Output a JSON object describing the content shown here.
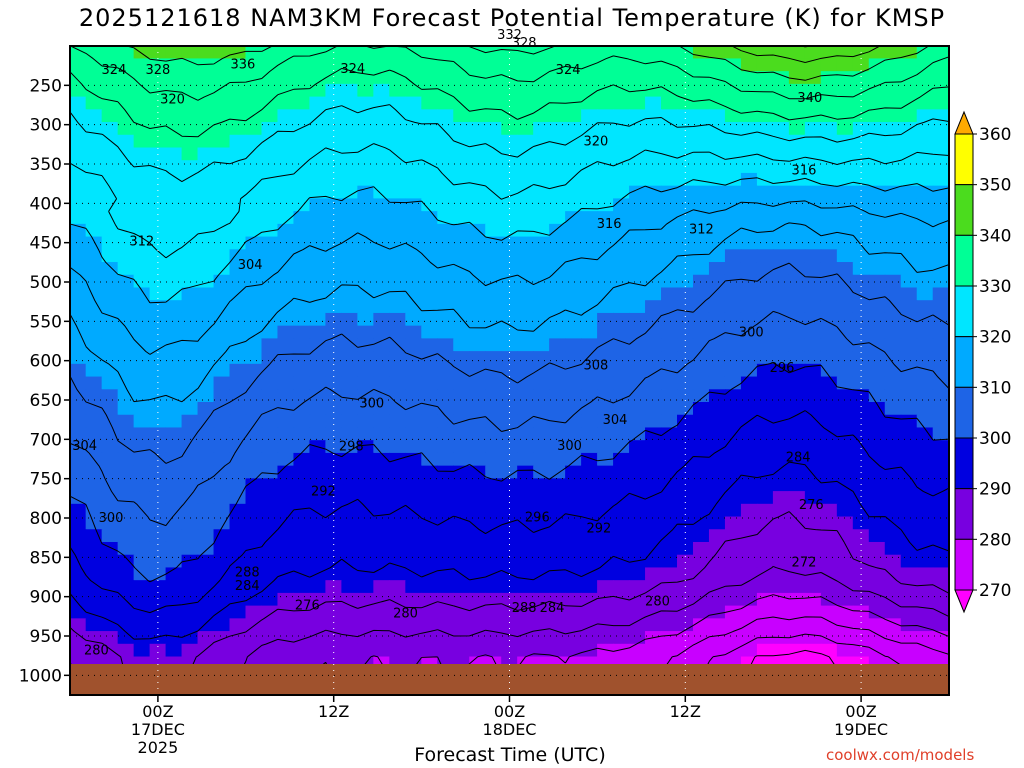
{
  "chart_data": {
    "type": "contour",
    "title": "2025121618 NAM3KM Forecast Potential Temperature (K) for KMSP",
    "xlabel": "Forecast Time (UTC)",
    "y_ticks": [
      250,
      300,
      350,
      400,
      450,
      500,
      550,
      600,
      650,
      700,
      750,
      800,
      850,
      900,
      950,
      1000
    ],
    "x_ticks": [
      {
        "hour": 6,
        "lines": [
          "00Z",
          "17DEC",
          "2025"
        ]
      },
      {
        "hour": 18,
        "lines": [
          "12Z"
        ]
      },
      {
        "hour": 30,
        "lines": [
          "00Z",
          "18DEC"
        ]
      },
      {
        "hour": 42,
        "lines": [
          "12Z"
        ]
      },
      {
        "hour": 54,
        "lines": [
          "00Z",
          "19DEC"
        ]
      }
    ],
    "x_range_hours": [
      0,
      60
    ],
    "y_range_hpa": [
      200,
      1025
    ],
    "colorbar": {
      "levels": [
        270,
        280,
        290,
        300,
        310,
        320,
        330,
        340,
        350,
        360
      ],
      "colors": [
        "#ff00ff",
        "#c800ff",
        "#7800e0",
        "#0000e0",
        "#1e64e6",
        "#00aaff",
        "#00e6ff",
        "#00ff96",
        "#4bdc1e",
        "#ffff00",
        "#ffaa00"
      ]
    },
    "contour_labels": [
      {
        "text": "324",
        "hour": 3.0,
        "p": 229
      },
      {
        "text": "328",
        "hour": 6.0,
        "p": 229
      },
      {
        "text": "336",
        "hour": 11.8,
        "p": 222
      },
      {
        "text": "324",
        "hour": 19.3,
        "p": 228
      },
      {
        "text": "332",
        "hour": 30.0,
        "p": 185
      },
      {
        "text": "328",
        "hour": 31.0,
        "p": 195
      },
      {
        "text": "324",
        "hour": 34.0,
        "p": 229
      },
      {
        "text": "340",
        "hour": 50.5,
        "p": 265
      },
      {
        "text": "320",
        "hour": 7.0,
        "p": 267
      },
      {
        "text": "320",
        "hour": 35.9,
        "p": 320
      },
      {
        "text": "316",
        "hour": 50.1,
        "p": 357
      },
      {
        "text": "316",
        "hour": 36.8,
        "p": 425
      },
      {
        "text": "312",
        "hour": 43.1,
        "p": 432
      },
      {
        "text": "312",
        "hour": 4.9,
        "p": 447
      },
      {
        "text": "304",
        "hour": 12.3,
        "p": 477
      },
      {
        "text": "300",
        "hour": 46.5,
        "p": 563
      },
      {
        "text": "308",
        "hour": 35.9,
        "p": 605
      },
      {
        "text": "296",
        "hour": 48.6,
        "p": 608
      },
      {
        "text": "300",
        "hour": 20.6,
        "p": 653
      },
      {
        "text": "304",
        "hour": 37.2,
        "p": 674
      },
      {
        "text": "304",
        "hour": 1.0,
        "p": 707
      },
      {
        "text": "300",
        "hour": 34.1,
        "p": 707
      },
      {
        "text": "298",
        "hour": 19.2,
        "p": 708
      },
      {
        "text": "284",
        "hour": 49.7,
        "p": 722
      },
      {
        "text": "292",
        "hour": 17.3,
        "p": 765
      },
      {
        "text": "300",
        "hour": 2.8,
        "p": 799
      },
      {
        "text": "276",
        "hour": 50.6,
        "p": 782
      },
      {
        "text": "296",
        "hour": 31.9,
        "p": 798
      },
      {
        "text": "292",
        "hour": 36.1,
        "p": 812
      },
      {
        "text": "272",
        "hour": 50.1,
        "p": 855
      },
      {
        "text": "288",
        "hour": 12.1,
        "p": 868
      },
      {
        "text": "284",
        "hour": 12.1,
        "p": 885
      },
      {
        "text": "276",
        "hour": 16.2,
        "p": 910
      },
      {
        "text": "280",
        "hour": 22.9,
        "p": 920
      },
      {
        "text": "288",
        "hour": 31.0,
        "p": 913
      },
      {
        "text": "284",
        "hour": 32.9,
        "p": 913
      },
      {
        "text": "280",
        "hour": 40.1,
        "p": 905
      },
      {
        "text": "280",
        "hour": 1.8,
        "p": 967
      }
    ]
  },
  "credit": "coolwx.com/models"
}
